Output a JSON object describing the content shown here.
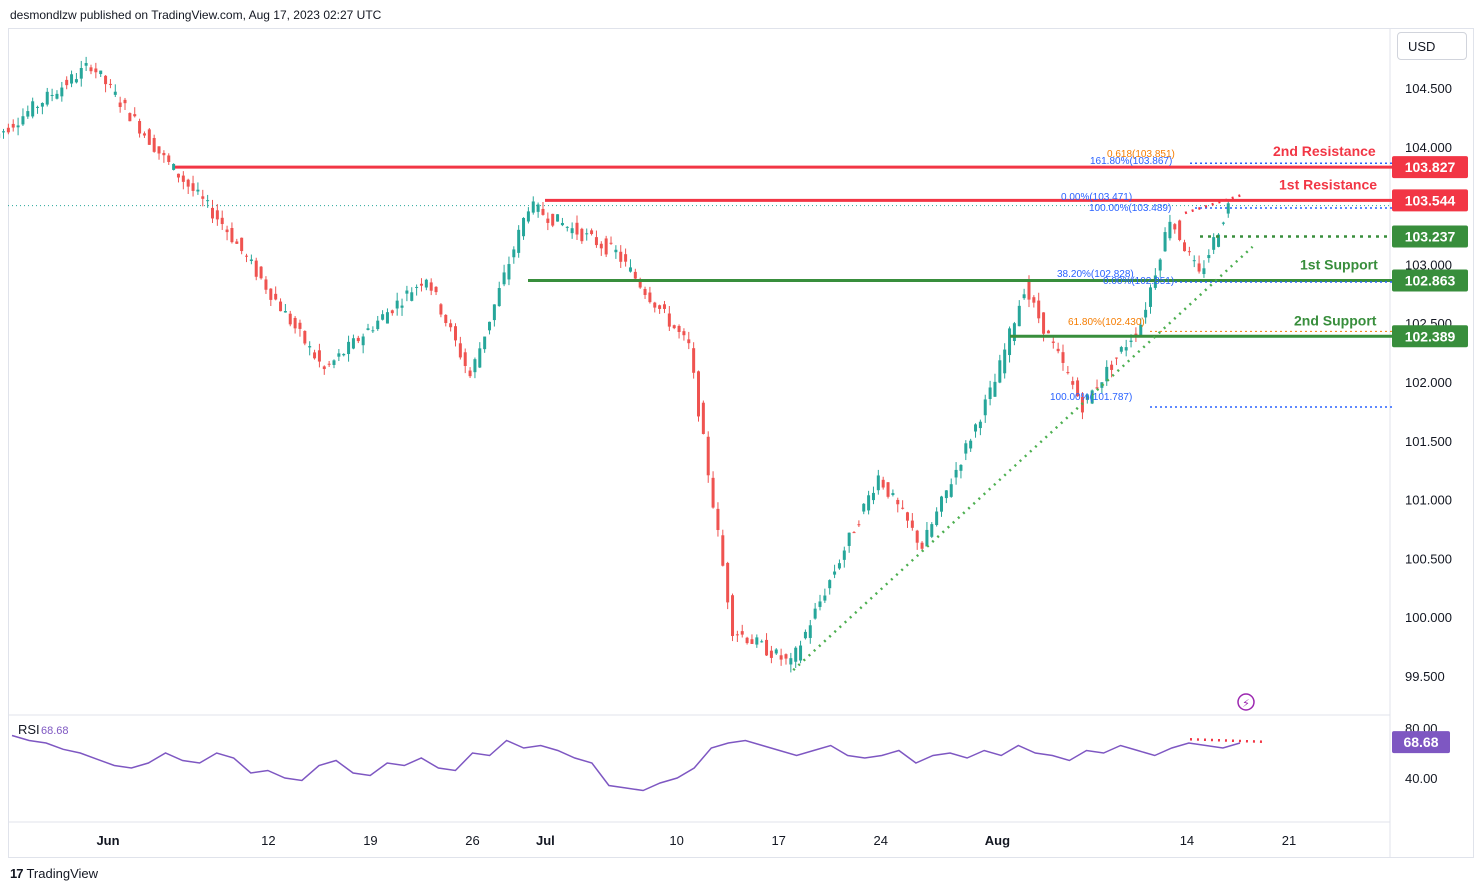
{
  "header": {
    "published": "desmondlzw published on TradingView.com, Aug 17, 2023 02:27 UTC"
  },
  "currency_button": "USD",
  "footer": {
    "brand": "TradingView",
    "logo_mark": "17"
  },
  "colors": {
    "up": "#26a69a",
    "down": "#ef5350",
    "resistance": "#f23645",
    "support": "#388e3c",
    "fib_blue": "#2962ff",
    "fib_orange": "#f57c00",
    "rsi": "#7e57c2",
    "rsi_badge": "#7e57c2",
    "trendline": "#4caf50"
  },
  "chart_data": {
    "type": "candlestick",
    "symbol_currency": "USD",
    "y_axis": {
      "ticks": [
        "104.500",
        "104.000",
        "103.000",
        "102.500",
        "102.000",
        "101.500",
        "101.000",
        "100.500",
        "100.000",
        "99.500"
      ],
      "ylim": [
        99.45,
        104.85
      ]
    },
    "x_axis": {
      "ticks": [
        "Jun",
        "12",
        "19",
        "26",
        "Jul",
        "10",
        "17",
        "24",
        "Aug",
        "14",
        "21"
      ]
    },
    "key_points": [
      {
        "date": "May 24",
        "close": 104.05
      },
      {
        "date": "May 31",
        "close": 104.7
      },
      {
        "date": "Jun 5",
        "close": 103.9
      },
      {
        "date": "Jun 9",
        "close": 103.35
      },
      {
        "date": "Jun 16",
        "close": 102.1
      },
      {
        "date": "Jun 23",
        "close": 102.9
      },
      {
        "date": "Jun 26",
        "close": 102.05
      },
      {
        "date": "Jun 30",
        "close": 103.5
      },
      {
        "date": "Jul 6",
        "close": 103.1
      },
      {
        "date": "Jul 11",
        "close": 102.3
      },
      {
        "date": "Jul 14",
        "close": 99.9
      },
      {
        "date": "Jul 18",
        "close": 99.6
      },
      {
        "date": "Jul 24",
        "close": 101.2
      },
      {
        "date": "Jul 27",
        "close": 100.6
      },
      {
        "date": "Aug 1",
        "close": 102.0
      },
      {
        "date": "Aug 3",
        "close": 102.8
      },
      {
        "date": "Aug 7",
        "close": 101.8
      },
      {
        "date": "Aug 11",
        "close": 102.5
      },
      {
        "date": "Aug 13",
        "close": 103.4
      },
      {
        "date": "Aug 15",
        "close": 102.9
      },
      {
        "date": "Aug 17",
        "close": 103.5
      }
    ],
    "levels": [
      {
        "name": "2nd Resistance",
        "value": "103.827",
        "kind": "resistance"
      },
      {
        "name": "1st Resistance",
        "value": "103.544",
        "kind": "resistance"
      },
      {
        "name": "",
        "value": "103.237",
        "kind": "support"
      },
      {
        "name": "1st Support",
        "value": "102.863",
        "kind": "support"
      },
      {
        "name": "2nd Support",
        "value": "102.389",
        "kind": "support"
      }
    ],
    "fib_labels": [
      {
        "text": "0.618(103.851)",
        "color": "orange"
      },
      {
        "text": "161.80%(103.867)",
        "color": "blue"
      },
      {
        "text": "0.00%(103.471)",
        "color": "blue"
      },
      {
        "text": "100.00%(103.489)",
        "color": "blue"
      },
      {
        "text": "38.20%(102.828)",
        "color": "blue"
      },
      {
        "text": "0.00%(102.851)",
        "color": "blue"
      },
      {
        "text": "61.80%(102.430)",
        "color": "orange"
      },
      {
        "text": "100.00%(101.787)",
        "color": "blue"
      }
    ],
    "rsi": {
      "label": "RSI",
      "value": "68.68",
      "ticks": [
        "80.00",
        "40.00"
      ],
      "ylim": [
        20,
        85
      ],
      "series": [
        74,
        70,
        68,
        63,
        60,
        55,
        50,
        48,
        52,
        60,
        54,
        52,
        60,
        56,
        44,
        46,
        40,
        38,
        50,
        54,
        44,
        42,
        52,
        50,
        56,
        48,
        46,
        60,
        58,
        70,
        64,
        66,
        62,
        56,
        52,
        34,
        32,
        30,
        36,
        40,
        48,
        64,
        68,
        70,
        66,
        62,
        58,
        62,
        66,
        58,
        56,
        58,
        62,
        52,
        58,
        60,
        56,
        62,
        58,
        66,
        60,
        58,
        54,
        62,
        60,
        66,
        62,
        58,
        64,
        68,
        66,
        64,
        68
      ]
    },
    "annotations": [
      "2nd Resistance",
      "1st Resistance",
      "1st Support",
      "2nd Support"
    ]
  }
}
